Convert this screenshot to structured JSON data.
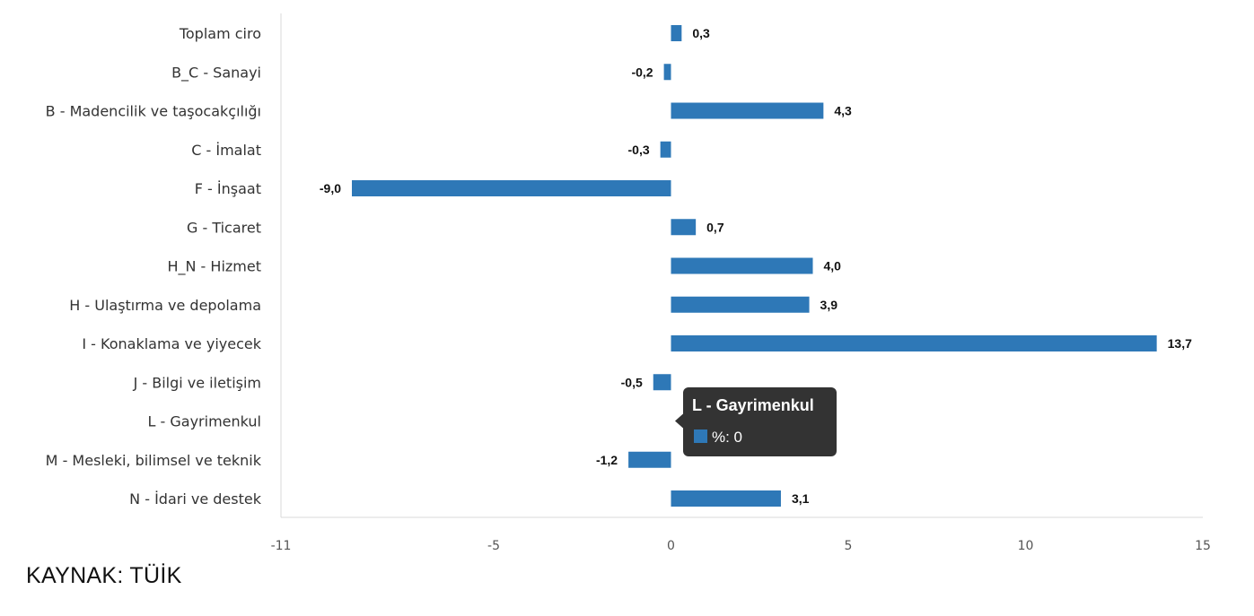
{
  "chart_data": {
    "type": "bar",
    "orientation": "horizontal",
    "categories": [
      "Toplam ciro",
      "B_C - Sanayi",
      "B - Madencilik ve taşocakçılığı",
      "C - İmalat",
      "F - İnşaat",
      "G - Ticaret",
      "H_N - Hizmet",
      "H - Ulaştırma ve depolama",
      "I - Konaklama ve yiyecek",
      "J - Bilgi ve iletişim",
      "L - Gayrimenkul",
      "M - Mesleki, bilimsel ve teknik",
      "N - İdari ve destek"
    ],
    "values": [
      0.3,
      -0.2,
      4.3,
      -0.3,
      -9.0,
      0.7,
      4.0,
      3.9,
      13.7,
      -0.5,
      0.0,
      -1.2,
      3.1
    ],
    "value_labels": [
      "0,3",
      "-0,2",
      "4,3",
      "-0,3",
      "-9,0",
      "0,7",
      "4,0",
      "3,9",
      "13,7",
      "-0,5",
      "0,0",
      "-1,2",
      "3,1"
    ],
    "xlim": [
      -11,
      15
    ],
    "xticks": [
      "-11",
      "-5",
      "0",
      "5",
      "10",
      "15"
    ],
    "xtick_values": [
      -11,
      -5,
      0,
      5,
      10,
      15
    ],
    "bar_color": "#2e78b7",
    "grid": false,
    "title": "",
    "xlabel": "",
    "ylabel": ""
  },
  "tooltip": {
    "title": "L - Gayrimenkul",
    "body": "%: 0",
    "category_index": 10,
    "background": "#333333"
  },
  "source": "KAYNAK: TÜİK"
}
